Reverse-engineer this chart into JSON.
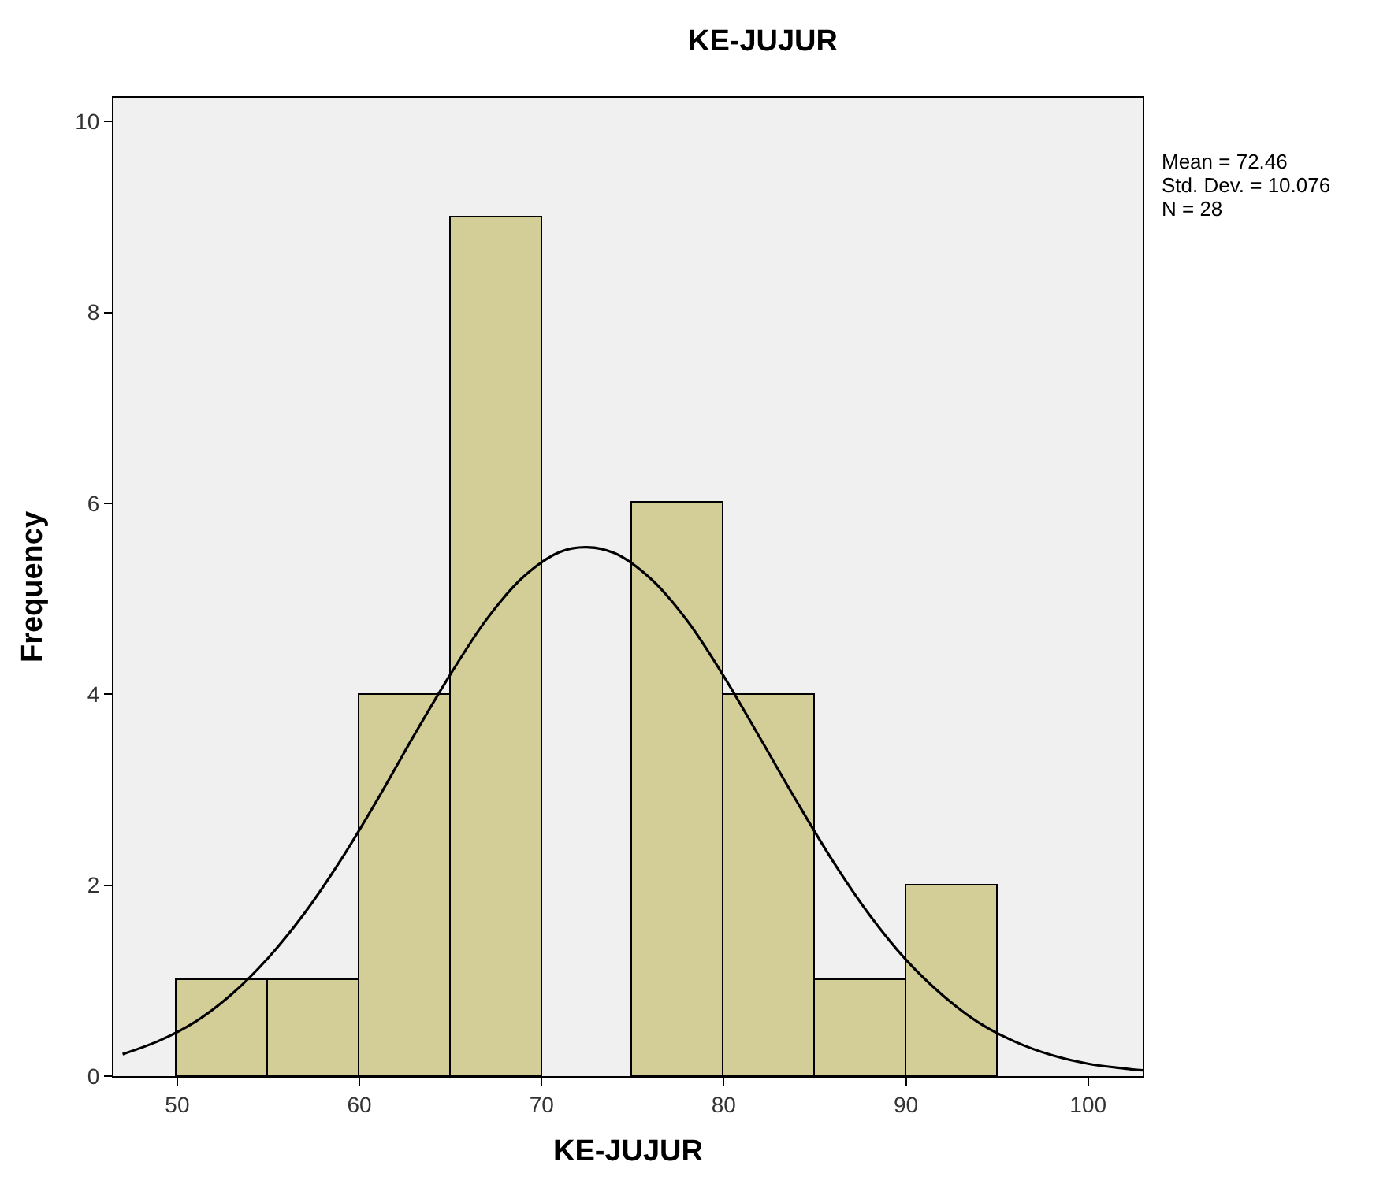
{
  "chart_data": {
    "type": "histogram",
    "title": "KE-JUJUR",
    "xlabel": "KE-JUJUR",
    "ylabel": "Frequency",
    "bins": [
      50,
      55,
      60,
      65,
      70,
      75,
      80,
      85,
      90,
      95
    ],
    "series": [
      {
        "color": "#d3ce97",
        "values": [
          1,
          1,
          4,
          9,
          0,
          6,
          4,
          1,
          2
        ]
      },
      {
        "type": "line",
        "color": "#000000",
        "x": [
          47,
          49,
          51,
          53,
          55,
          57,
          59,
          61,
          63,
          65,
          67,
          69,
          71,
          72.46,
          74,
          76,
          78,
          80,
          82,
          84,
          86,
          88,
          90,
          92,
          94,
          96,
          98,
          100,
          102,
          103
        ],
        "values": [
          0.23,
          0.37,
          0.57,
          0.86,
          1.24,
          1.71,
          2.27,
          2.9,
          3.57,
          4.21,
          4.79,
          5.23,
          5.49,
          5.54,
          5.48,
          5.21,
          4.77,
          4.19,
          3.54,
          2.88,
          2.25,
          1.69,
          1.22,
          0.85,
          0.56,
          0.36,
          0.22,
          0.13,
          0.08,
          0.06
        ]
      }
    ],
    "annotations": [
      "Mean = 72.46",
      "Std. Dev. = 10.076",
      "N = 28"
    ],
    "xlim": [
      46.5,
      103
    ],
    "ylim": [
      0,
      10.25
    ],
    "xticks": [
      50,
      60,
      70,
      80,
      90,
      100
    ],
    "yticks": [
      0,
      2,
      4,
      6,
      8,
      10
    ],
    "grid": false
  }
}
